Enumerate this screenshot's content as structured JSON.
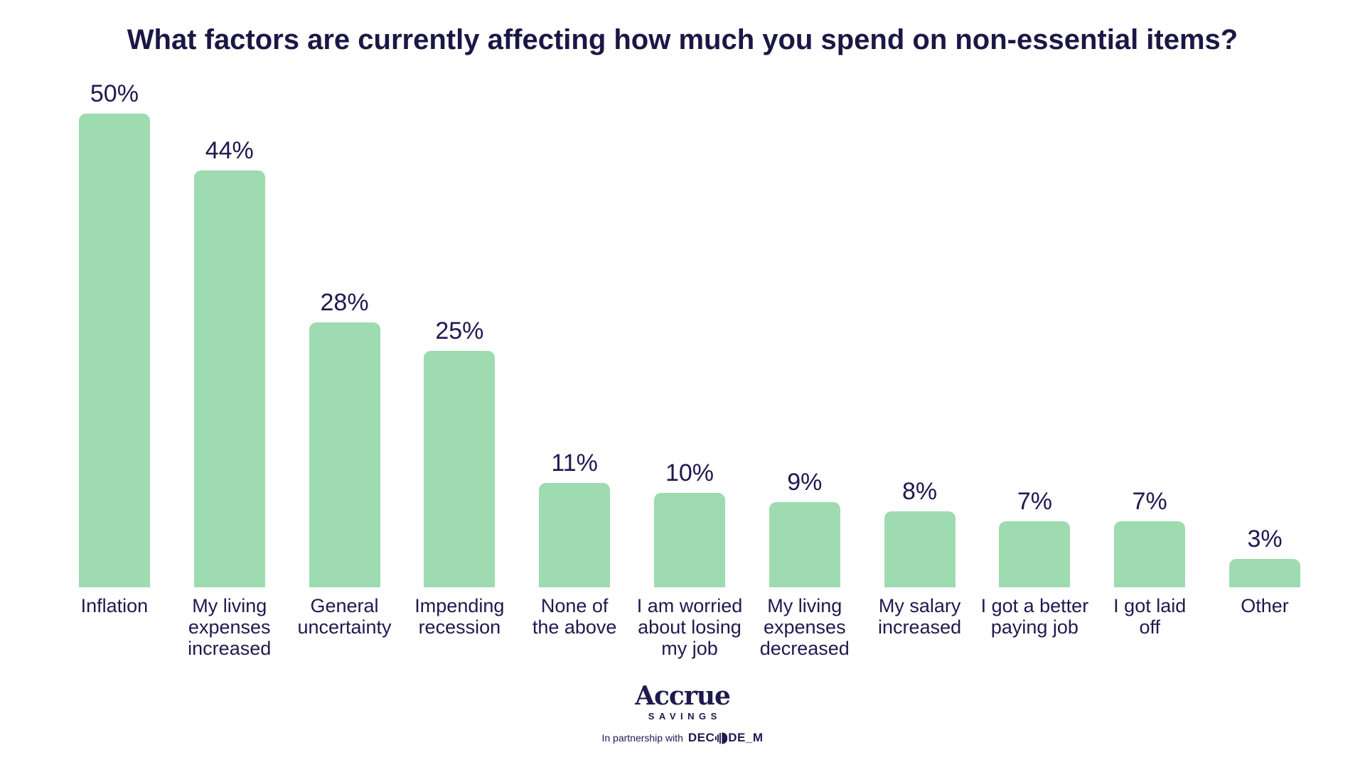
{
  "title": "What factors are currently affecting how much you spend on non-essential items?",
  "colors": {
    "bar": "#9edbb0",
    "navy": "#1e1a4e",
    "title": "#1b1745"
  },
  "chart_data": {
    "type": "bar",
    "title": "What factors are currently affecting how much you spend on non-essential items?",
    "categories": [
      "Inflation",
      "My living expenses increased",
      "General uncertainty",
      "Impending recession",
      "None of the above",
      "I am worried about losing my job",
      "My living expenses decreased",
      "My salary increased",
      "I got a better paying job",
      "I got laid off",
      "Other"
    ],
    "category_lines": [
      [
        "Inflation"
      ],
      [
        "My living",
        "expenses",
        "increased"
      ],
      [
        "General",
        "uncertainty"
      ],
      [
        "Impending",
        "recession"
      ],
      [
        "None of",
        "the above"
      ],
      [
        "I am worried",
        "about losing",
        "my job"
      ],
      [
        "My living",
        "expenses",
        "decreased"
      ],
      [
        "My salary",
        "increased"
      ],
      [
        "I got a better",
        "paying job"
      ],
      [
        "I got laid",
        "off"
      ],
      [
        "Other"
      ]
    ],
    "values": [
      50,
      44,
      28,
      25,
      11,
      10,
      9,
      8,
      7,
      7,
      3
    ],
    "value_labels": [
      "50%",
      "44%",
      "28%",
      "25%",
      "11%",
      "10%",
      "9%",
      "8%",
      "7%",
      "7%",
      "3%"
    ],
    "unit": "%",
    "ylim": [
      0,
      50
    ],
    "grid": false,
    "axes_shown": false,
    "legend": null,
    "bar_color": "#9edbb0",
    "label_color": "#1e1a4e"
  },
  "footer": {
    "brand": "Accrue",
    "brand_subtitle": "SAVINGS",
    "partnership_text": "In partnership with",
    "partner_name_left": "DEC",
    "partner_name_right": "DE_M",
    "partner_icon": "striped-circle-icon"
  }
}
